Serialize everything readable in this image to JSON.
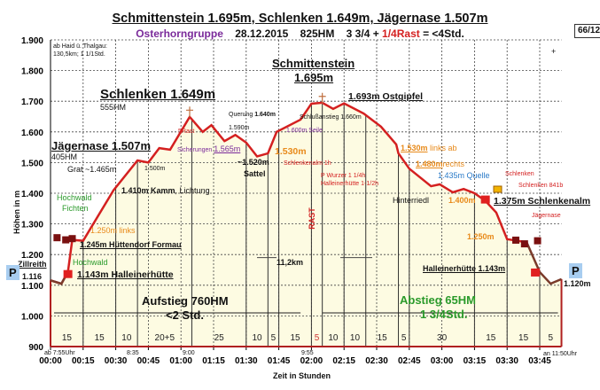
{
  "header": {
    "title": "Schmittenstein 1.695m, Schlenken 1.649m, Jägernase 1.507m",
    "sub_group": "Osterhorngruppe",
    "sub_date": "28.12.2015",
    "sub_hm": "825HM",
    "sub_time": "3 3/4 + ",
    "sub_rast": "1/4Rast",
    "sub_total": " = <4Std.",
    "badge": "66/12",
    "plus": "+"
  },
  "info_box": {
    "col1_l1": "ab Haid ü.",
    "col1_l2": "130,5km;",
    "col2_l1": "Thalgau:",
    "col2_l2": "1 1/1Std."
  },
  "chart_data": {
    "type": "area",
    "xlabel": "Zeit in Stunden",
    "ylabel": "Höhen in m",
    "ylim": [
      900,
      1900
    ],
    "xlim": [
      "00:00",
      "03:55"
    ],
    "y_ticks": [
      "900",
      "1.000",
      "1.100",
      "1.200",
      "1.300",
      "1.400",
      "1.500",
      "1.600",
      "1.700",
      "1.800",
      "1.900"
    ],
    "x_ticks": [
      "00:00",
      "00:15",
      "00:30",
      "00:45",
      "01:00",
      "01:15",
      "01:30",
      "01:45",
      "02:00",
      "02:15",
      "02:30",
      "02:45",
      "03:00",
      "03:15",
      "03:30",
      "03:45"
    ],
    "grid": true,
    "colors": {
      "line": "#d42020",
      "fill": "#fdfbe2",
      "descent_end": "#7a3a2a"
    },
    "profile": [
      [
        "00:00",
        1116
      ],
      [
        "00:05",
        1105
      ],
      [
        "00:08",
        1143
      ],
      [
        "00:10",
        1248
      ],
      [
        "00:15",
        1245
      ],
      [
        "00:29",
        1410
      ],
      [
        "00:40",
        1507
      ],
      [
        "00:45",
        1500
      ],
      [
        "00:50",
        1547
      ],
      [
        "00:55",
        1542
      ],
      [
        "01:04",
        1649
      ],
      [
        "01:10",
        1600
      ],
      [
        "01:14",
        1622
      ],
      [
        "01:20",
        1570
      ],
      [
        "01:25",
        1590
      ],
      [
        "01:30",
        1565
      ],
      [
        "01:35",
        1520
      ],
      [
        "01:40",
        1530
      ],
      [
        "01:44",
        1600
      ],
      [
        "01:55",
        1640
      ],
      [
        "02:00",
        1692
      ],
      [
        "02:05",
        1695
      ],
      [
        "02:10",
        1675
      ],
      [
        "02:15",
        1693
      ],
      [
        "02:24",
        1660
      ],
      [
        "02:32",
        1617
      ],
      [
        "02:39",
        1559
      ],
      [
        "02:40",
        1530
      ],
      [
        "02:45",
        1480
      ],
      [
        "02:55",
        1423
      ],
      [
        "02:59",
        1429
      ],
      [
        "03:05",
        1403
      ],
      [
        "03:10",
        1414
      ],
      [
        "03:15",
        1400
      ],
      [
        "03:20",
        1375
      ],
      [
        "03:25",
        1337
      ],
      [
        "03:30",
        1250
      ],
      [
        "03:33",
        1247
      ],
      [
        "03:39",
        1240
      ],
      [
        "03:45",
        1143
      ],
      [
        "03:50",
        1105
      ],
      [
        "03:55",
        1120
      ]
    ],
    "segment_boundaries": [
      "00:15",
      "00:30",
      "00:40",
      "01:05",
      "01:30",
      "01:40",
      "01:45",
      "02:00",
      "02:05",
      "02:15",
      "02:25",
      "02:40",
      "02:45",
      "03:15",
      "03:30",
      "03:45",
      "03:55"
    ],
    "segment_labels": [
      "15",
      "15",
      "10",
      "20+5",
      "25",
      "10",
      "5",
      "15",
      "5",
      "10",
      "10",
      "15",
      "5",
      "30",
      "15",
      "15",
      "5"
    ],
    "clock_labels": {
      "start": "ab 7:55Uhr",
      "t1": "8:35",
      "t2": "9:00",
      "t3": "9:55",
      "end": "an 11:50Uhr"
    },
    "annotations": {
      "schlenken": "Schlenken 1.649m",
      "schlenken_hm": "555HM",
      "jaegernase": "Jägernase 1.507m",
      "jaegernase_hm": "405HM",
      "grat": "Grat ~1.465m",
      "p1500": "1.500m",
      "kamm": "1.410m Kamm",
      "lichtung": ", Lichtung",
      "hochwald1": "Hochwald",
      "fichten": "Fichten",
      "links1250": "1.250m links",
      "formau": "1.245m Hüttendorf Formau",
      "hochwald2": "Hochwald",
      "hallein1": "1.143m Halleinerhütte",
      "zillreith": "Zillreith",
      "start_elev": "1.116",
      "parking": "P",
      "aufstieg": "Aufstieg 760HM",
      "aufstieg_time": "<2 Std.",
      "schmittenstein": "Schmittenstein",
      "schmittenstein_elev": "1.695m",
      "ostgipfel": "1.693m Ostgipfel",
      "querung": "Querung ",
      "querung_elev": "1.640m",
      "p1590": "1.590m",
      "sicherungen": "Sicherungen ",
      "sicherungen_elev": "1.565m",
      "sattel_elev": "~1.520m",
      "sattel": "Sattel",
      "p1530": "1.530m",
      "schlenkenalm_1h": "Schlenkenalm 1h",
      "schluss": "Schlußanstieg 1.660m",
      "seile": "1.600m Seile",
      "rast5": "5Rast",
      "rast": "RAST",
      "wurzer": "P Wurzer 1 1/4h",
      "hallein_time": "Halleinerhütte 1-1/2h",
      "links_ab_elev": "1.530m",
      "links_ab": " links ab",
      "rechts_elev": "1.480m",
      "rechts": "rechts",
      "quelle": "1.435m Quelle",
      "sign_schlenken": "Schlenken",
      "sign_841": "Schlenken 841b",
      "hinterriedl": "Hinterriedl",
      "p1400": "1.400m",
      "schlenkenalm": "1.375m Schlenkenalm",
      "sign_jaeger": "Jägernase",
      "p1250": "1.250m",
      "hallein2": "Halleinerhütte 1.143m",
      "end_elev": "1.120m",
      "distance": "11,2km",
      "abstieg": "Abstieg 65HM",
      "abstieg_time": "1 3/4Std."
    }
  }
}
